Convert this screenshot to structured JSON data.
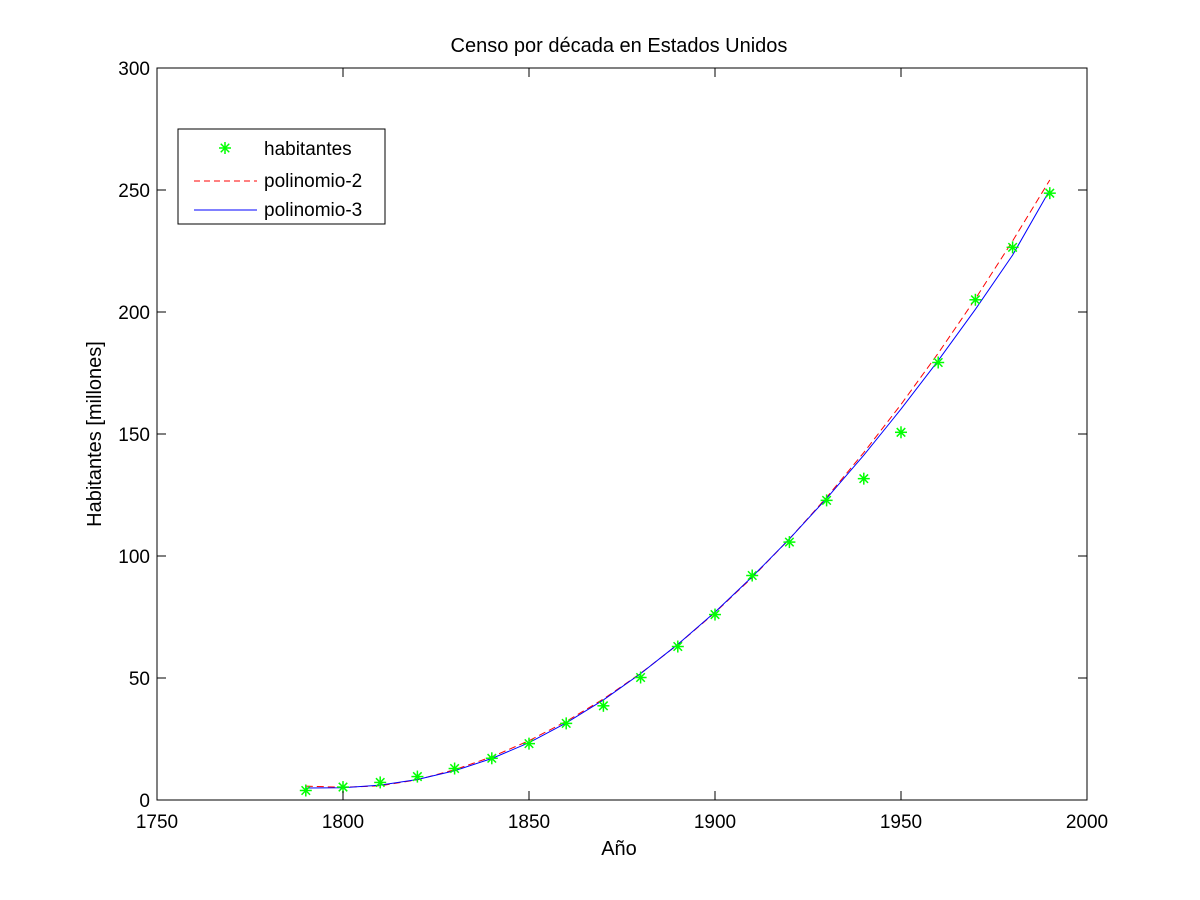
{
  "chart_data": {
    "type": "line",
    "title": "Censo por década en Estados Unidos",
    "xlabel": "Año",
    "ylabel": "Habitantes [millones]",
    "xlim": [
      1750,
      2000
    ],
    "ylim": [
      0,
      300
    ],
    "x_ticks": [
      1750,
      1800,
      1850,
      1900,
      1950,
      2000
    ],
    "y_ticks": [
      0,
      50,
      100,
      150,
      200,
      250,
      300
    ],
    "grid": false,
    "legend_position": "top-left",
    "x": [
      1790,
      1800,
      1810,
      1820,
      1830,
      1840,
      1850,
      1860,
      1870,
      1880,
      1890,
      1900,
      1910,
      1920,
      1930,
      1940,
      1950,
      1960,
      1970,
      1980,
      1990
    ],
    "series": [
      {
        "name": "habitantes",
        "style": "markers",
        "marker": "asterisk",
        "color": "#00ff00",
        "values": [
          3.9,
          5.3,
          7.2,
          9.6,
          12.9,
          17.1,
          23.1,
          31.4,
          38.6,
          50.2,
          62.9,
          76.0,
          92.0,
          105.7,
          122.8,
          131.7,
          150.7,
          179.3,
          205.0,
          226.5,
          248.7
        ]
      },
      {
        "name": "polinomio-2",
        "style": "dashed",
        "color": "#ff0000",
        "values": [
          5.7,
          5.2,
          5.8,
          8.3,
          12.4,
          17.7,
          24.3,
          32.2,
          41.4,
          51.9,
          63.7,
          76.8,
          91.2,
          107.0,
          124.0,
          142.4,
          162.1,
          183.1,
          205.4,
          229.1,
          254.1
        ]
      },
      {
        "name": "polinomio-3",
        "style": "solid",
        "color": "#0000ff",
        "values": [
          4.9,
          5.0,
          6.1,
          8.4,
          12.0,
          17.0,
          23.5,
          31.6,
          41.0,
          51.8,
          63.8,
          77.0,
          91.5,
          107.0,
          123.6,
          141.3,
          160.2,
          180.1,
          201.1,
          223.3,
          250.0
        ]
      }
    ]
  }
}
